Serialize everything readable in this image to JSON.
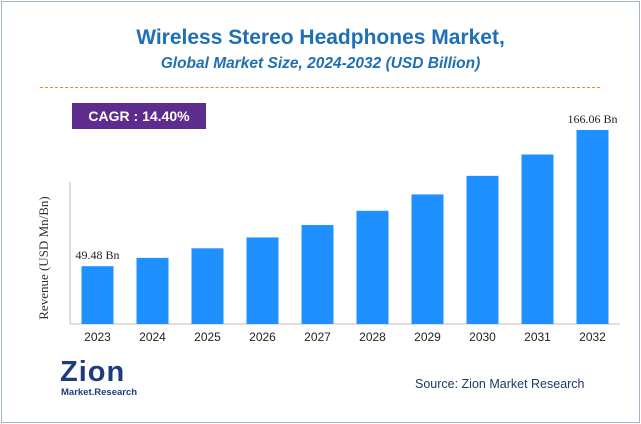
{
  "header": {
    "title": "Wireless Stereo Headphones Market,",
    "subtitle": "Global Market Size, 2024-2032 (USD Billion)"
  },
  "cagr": {
    "label": "CAGR : 14.40%"
  },
  "footer": {
    "source": "Source: Zion Market Research",
    "logo_word": "Zion",
    "logo_sub": "Market.Research"
  },
  "colors": {
    "title": "#1f6fb5",
    "subtitle": "#1f6fb5",
    "bar": "#1e90ff",
    "cagr_bg": "#5e2b8f",
    "logo_blue": "#1d3c7a",
    "logo_orange": "#f39a1e"
  },
  "chart_data": {
    "type": "bar",
    "title": "Wireless Stereo Headphones Market,",
    "subtitle": "Global Market Size, 2024-2032 (USD Billion)",
    "xlabel": "",
    "ylabel": "Revenue (USD Mn/Bn)",
    "categories": [
      "2023",
      "2024",
      "2025",
      "2026",
      "2027",
      "2028",
      "2029",
      "2030",
      "2031",
      "2032"
    ],
    "values": [
      49.48,
      56.6,
      64.8,
      74.1,
      84.7,
      96.9,
      110.9,
      126.8,
      145.1,
      166.06
    ],
    "ylim": [
      0,
      166.06
    ],
    "grid": false,
    "data_labels": [
      {
        "index": 0,
        "text": "49.48 Bn"
      },
      {
        "index": 9,
        "text": "166.06 Bn"
      }
    ]
  }
}
